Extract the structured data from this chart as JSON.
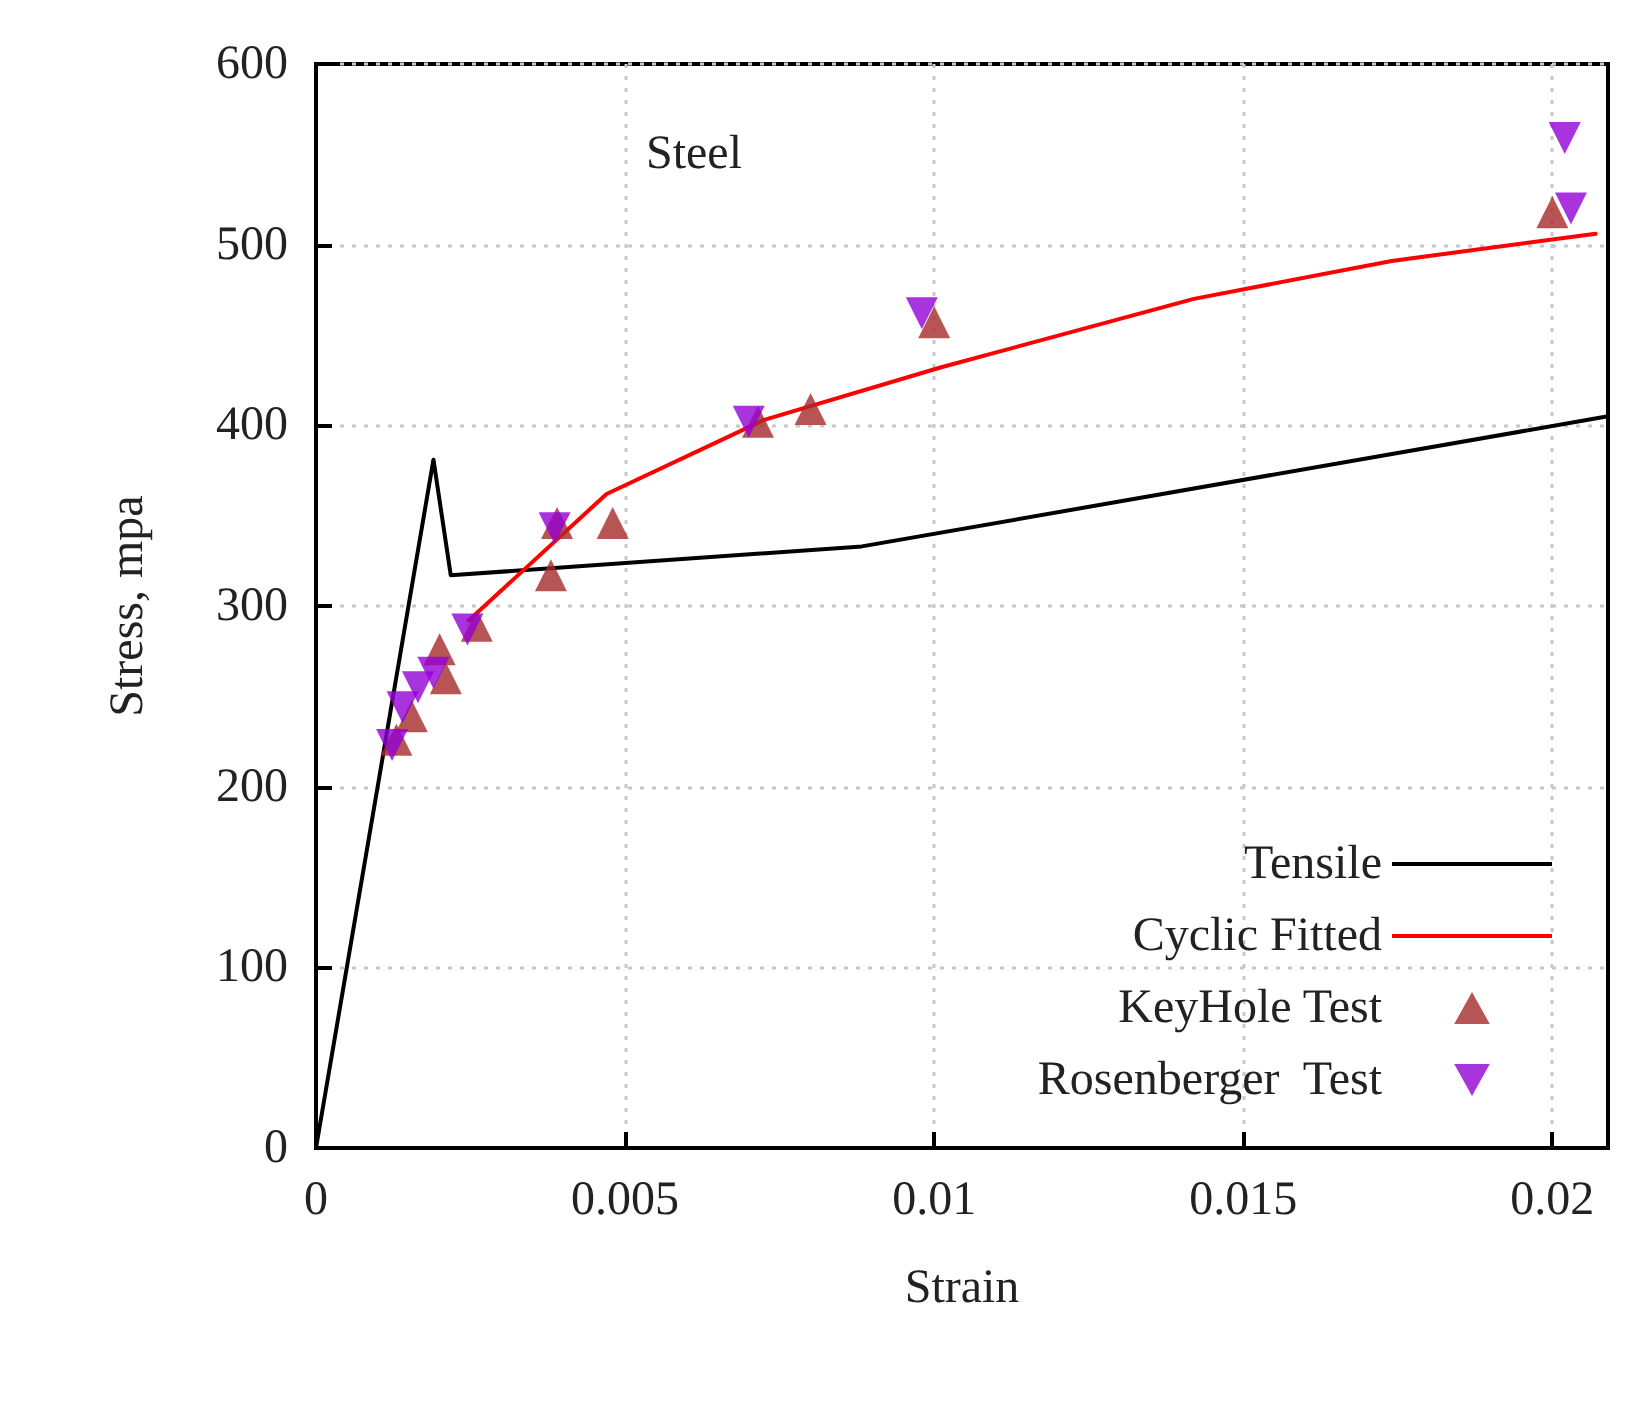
{
  "chart_data": {
    "type": "line",
    "title": "Steel",
    "xlabel": "Strain",
    "ylabel": "Stress, mpa",
    "xlim": [
      0,
      0.0209
    ],
    "ylim": [
      0,
      600
    ],
    "xticks": [
      0,
      0.005,
      0.01,
      0.015,
      0.02
    ],
    "yticks": [
      0,
      100,
      200,
      300,
      400,
      500,
      600
    ],
    "grid": true,
    "legend": "bottom right",
    "series": [
      {
        "name": "Tensile",
        "color": "#000000",
        "marker": "none",
        "x": [
          0,
          0.0019,
          0.00218,
          0.00883,
          0.0209
        ],
        "values": [
          0,
          381,
          317,
          333,
          405
        ]
      },
      {
        "name": "Cyclic Fitted",
        "color": "#ff0000",
        "marker": "none",
        "x": [
          0.00247,
          0.0047,
          0.00725,
          0.0101,
          0.0142,
          0.0174,
          0.0207
        ],
        "values": [
          292,
          362,
          403,
          432,
          470,
          491,
          506
        ]
      },
      {
        "name": "KeyHole Test",
        "type": "scatter",
        "color": "#a52a2a",
        "marker": "triangle",
        "x": [
          0.0013,
          0.00155,
          0.002,
          0.0021,
          0.0026,
          0.0038,
          0.0039,
          0.0048,
          0.00715,
          0.008,
          0.01,
          0.02
        ],
        "values": [
          226,
          239,
          276,
          260,
          289,
          317,
          346,
          346,
          402,
          409,
          457,
          518
        ]
      },
      {
        "name": "Rosenberger  Test",
        "type": "scatter",
        "color": "#9400d3",
        "marker": "triangle_down",
        "x": [
          0.00123,
          0.0014,
          0.00165,
          0.0019,
          0.00245,
          0.00386,
          0.007,
          0.0098,
          0.0202,
          0.0203
        ],
        "values": [
          223,
          244,
          255,
          263,
          287,
          343,
          402,
          462,
          559,
          520
        ]
      }
    ]
  }
}
